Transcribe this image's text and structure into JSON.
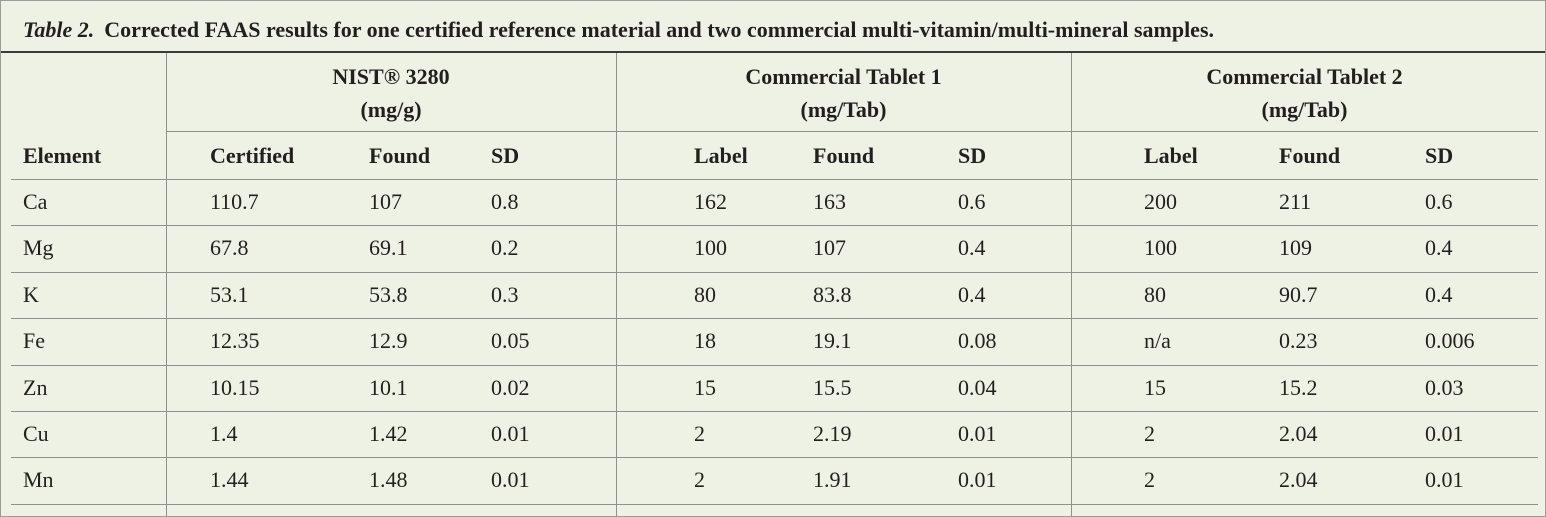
{
  "title": {
    "label": "Table 2.",
    "text": "Corrected FAAS results for one certified reference material and two commercial multi-vitamin/multi-mineral samples."
  },
  "table": {
    "groups": [
      {
        "name": "NIST® 3280",
        "unit": "(mg/g)"
      },
      {
        "name": "Commercial Tablet 1",
        "unit": "(mg/Tab)"
      },
      {
        "name": "Commercial Tablet 2",
        "unit": "(mg/Tab)"
      }
    ],
    "columns": [
      "Element",
      "Certified",
      "Found",
      "SD",
      "Label",
      "Found",
      "SD",
      "Label",
      "Found",
      "SD"
    ],
    "rows": [
      [
        "Ca",
        "110.7",
        "107",
        "0.8",
        "162",
        "163",
        "0.6",
        "200",
        "211",
        "0.6"
      ],
      [
        "Mg",
        "67.8",
        "69.1",
        "0.2",
        "100",
        "107",
        "0.4",
        "100",
        "109",
        "0.4"
      ],
      [
        "K",
        "53.1",
        "53.8",
        "0.3",
        "80",
        "83.8",
        "0.4",
        "80",
        "90.7",
        "0.4"
      ],
      [
        "Fe",
        "12.35",
        "12.9",
        "0.05",
        "18",
        "19.1",
        "0.08",
        "n/a",
        "0.23",
        "0.006"
      ],
      [
        "Zn",
        "10.15",
        "10.1",
        "0.02",
        "15",
        "15.5",
        "0.04",
        "15",
        "15.2",
        "0.03"
      ],
      [
        "Cu",
        "1.4",
        "1.42",
        "0.01",
        "2",
        "2.19",
        "0.01",
        "2",
        "2.04",
        "0.01"
      ],
      [
        "Mn",
        "1.44",
        "1.48",
        "0.01",
        "2",
        "1.91",
        "0.01",
        "2",
        "2.04",
        "0.01"
      ]
    ]
  }
}
